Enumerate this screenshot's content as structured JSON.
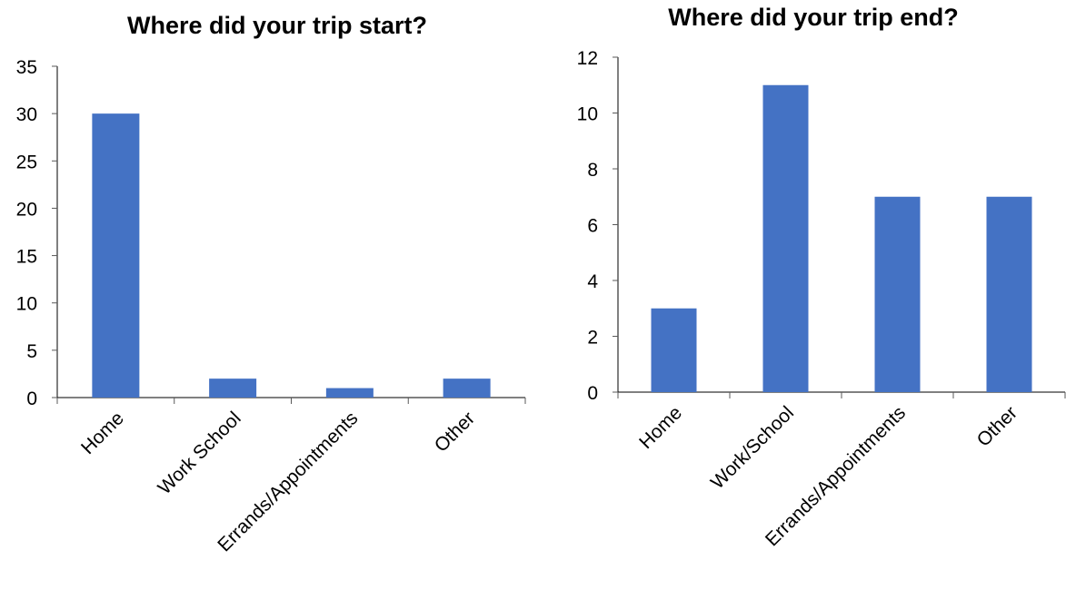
{
  "chart_data": [
    {
      "type": "bar",
      "title": "Where did your trip start?",
      "categories": [
        "Home",
        "Work School",
        "Errands/Appointments",
        "Other"
      ],
      "values": [
        30,
        2,
        1,
        2
      ],
      "ylim": [
        0,
        35
      ],
      "yticks": [
        0,
        5,
        10,
        15,
        20,
        25,
        30,
        35
      ],
      "xlabel": "",
      "ylabel": "",
      "grid": false,
      "bar_color": "#4472C4"
    },
    {
      "type": "bar",
      "title": "Where did your trip end?",
      "categories": [
        "Home",
        "Work/School",
        "Errands/Appointments",
        "Other"
      ],
      "values": [
        3,
        11,
        7,
        7
      ],
      "ylim": [
        0,
        12
      ],
      "yticks": [
        0,
        2,
        4,
        6,
        8,
        10,
        12
      ],
      "xlabel": "",
      "ylabel": "",
      "grid": false,
      "bar_color": "#4472C4"
    }
  ]
}
